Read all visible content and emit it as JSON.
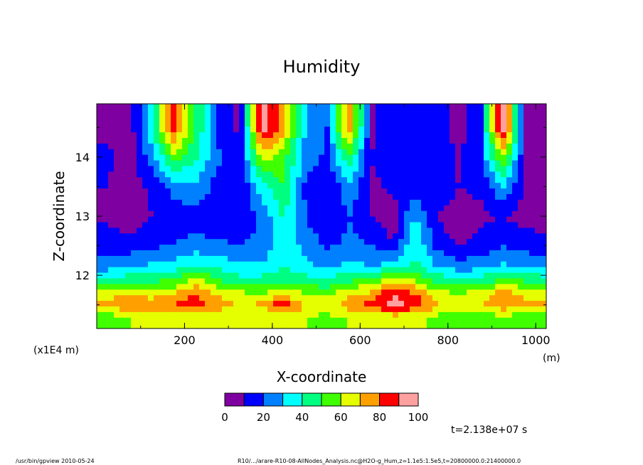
{
  "chart_data": {
    "type": "heatmap",
    "title": "Humidity",
    "xlabel": "X-coordinate",
    "ylabel": "Z-coordinate",
    "x_unit": "(m)",
    "y_unit": "(x1E4 m)",
    "xlim": [
      0,
      1024
    ],
    "ylim": [
      11.1,
      14.9
    ],
    "x_ticks": [
      "200",
      "400",
      "600",
      "800",
      "1000"
    ],
    "y_ticks": [
      "12",
      "13",
      "14"
    ],
    "colorbar": {
      "levels": [
        0,
        10,
        20,
        30,
        40,
        50,
        60,
        70,
        80,
        90,
        100
      ],
      "tick_labels": [
        "0",
        "20",
        "40",
        "60",
        "80",
        "100"
      ],
      "colors": [
        "#7f00a0",
        "#0000ff",
        "#0080ff",
        "#00ffff",
        "#00ff80",
        "#40ff00",
        "#e6ff00",
        "#ffa000",
        "#ff0000",
        "#ffa0a0"
      ],
      "above_color": "#ffffff"
    },
    "time_label": "t=2.138e+07 s",
    "field_summary": {
      "x_centers": [
        25,
        75,
        125,
        175,
        225,
        275,
        325,
        375,
        425,
        475,
        525,
        575,
        625,
        675,
        725,
        775,
        825,
        875,
        925,
        975,
        1015
      ],
      "z_centers": [
        11.3,
        11.5,
        11.7,
        11.9,
        12.2,
        12.6,
        13.0,
        13.5,
        14.0,
        14.5
      ],
      "values": [
        [
          55,
          60,
          60,
          62,
          65,
          62,
          60,
          60,
          62,
          60,
          58,
          60,
          62,
          65,
          62,
          58,
          55,
          55,
          58,
          55,
          55
        ],
        [
          75,
          78,
          75,
          80,
          85,
          75,
          70,
          72,
          88,
          70,
          65,
          75,
          85,
          95,
          88,
          70,
          65,
          70,
          78,
          72,
          75
        ],
        [
          65,
          68,
          66,
          70,
          80,
          68,
          62,
          60,
          66,
          60,
          58,
          68,
          72,
          90,
          80,
          64,
          60,
          64,
          74,
          68,
          66
        ],
        [
          45,
          48,
          50,
          52,
          65,
          52,
          45,
          45,
          50,
          45,
          42,
          50,
          55,
          70,
          62,
          48,
          42,
          45,
          55,
          50,
          48
        ],
        [
          22,
          26,
          30,
          32,
          38,
          35,
          30,
          30,
          38,
          32,
          26,
          32,
          28,
          30,
          42,
          28,
          22,
          24,
          30,
          26,
          24
        ],
        [
          15,
          12,
          14,
          18,
          22,
          20,
          18,
          22,
          35,
          26,
          16,
          22,
          18,
          8,
          40,
          14,
          8,
          12,
          16,
          14,
          12
        ],
        [
          8,
          4,
          10,
          14,
          16,
          14,
          12,
          22,
          42,
          20,
          10,
          20,
          10,
          5,
          30,
          10,
          5,
          8,
          10,
          6,
          6
        ],
        [
          10,
          4,
          12,
          24,
          28,
          16,
          10,
          35,
          50,
          18,
          10,
          28,
          8,
          12,
          14,
          16,
          10,
          12,
          30,
          8,
          5
        ],
        [
          12,
          4,
          25,
          55,
          42,
          22,
          12,
          65,
          55,
          25,
          18,
          48,
          10,
          16,
          12,
          18,
          8,
          20,
          60,
          10,
          5
        ],
        [
          8,
          4,
          40,
          85,
          50,
          18,
          8,
          95,
          75,
          30,
          20,
          80,
          8,
          18,
          10,
          14,
          6,
          20,
          100,
          8,
          4
        ]
      ]
    }
  },
  "footer": {
    "left": "/usr/bin/gpview  2010-05-24",
    "right": "R10/.../arare-R10-08-AllNodes_Analysis.nc@H2O-g_Hum,z=1.1e5:1.5e5,t=20800000.0:21400000.0"
  }
}
